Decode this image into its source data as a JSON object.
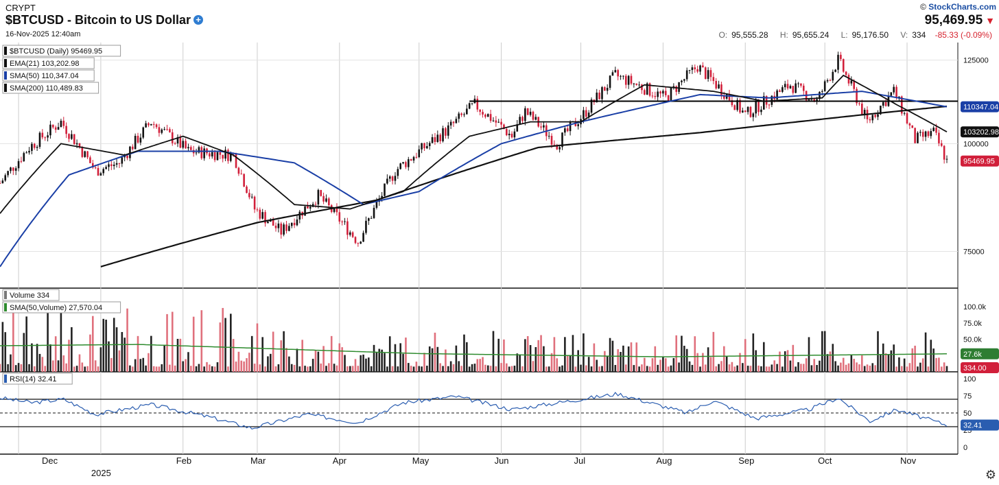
{
  "header": {
    "exchange": "CRYPT",
    "title": "$BTCUSD - Bitcoin to US Dollar",
    "datetime": "16-Nov-2025 12:40am",
    "brand_prefix": "©",
    "brand": "StockCharts.com",
    "last_price": "95,469.95",
    "open_label": "O:",
    "open": "95,555.28",
    "high_label": "H:",
    "high": "95,655.24",
    "low_label": "L:",
    "low": "95,176.50",
    "volume_label": "V:",
    "volume": "334",
    "change": "-85.33 (-0.09%)"
  },
  "colors": {
    "up": "#111111",
    "down": "#d11f3a",
    "sma50": "#1a3fa6",
    "volsma": "#2e8b2e",
    "rsi": "#2a5db0",
    "rsi_fill": "#2f8f5b"
  },
  "legend": {
    "price_label": "$BTCUSD (Daily) 95469.95",
    "ema21_label": "EMA(21) 103,202.98",
    "sma50_label": "SMA(50) 110,347.04",
    "sma200_label": "SMA(200) 110,489.83",
    "volume_label": "Volume 334",
    "volsma_label": "SMA(50,Volume) 27,570.04",
    "rsi_label": "RSI(14) 32.41"
  },
  "badges": {
    "sma50": "110347.04",
    "ema21": "103202.98",
    "price": "95469.95",
    "vol_sma": "27.6k",
    "volume": "334.00",
    "rsi": "32.41"
  },
  "gear_icon": "gear-icon",
  "chart_data": {
    "type": "candlestick",
    "date_range": [
      "2024-11-24",
      "2025-11-16"
    ],
    "x_tick_labels": [
      "Dec",
      "2025",
      "Feb",
      "Mar",
      "Apr",
      "May",
      "Jun",
      "Jul",
      "Aug",
      "Sep",
      "Oct",
      "Nov"
    ],
    "price_axis_ticks": [
      "125000",
      "100000",
      "75000"
    ],
    "volume_axis_ticks": [
      "100.0k",
      "75.0k",
      "50.0k",
      "25.0k"
    ],
    "rsi_axis_ticks": [
      "100",
      "75",
      "50",
      "25",
      "0"
    ],
    "price_key_points": [
      {
        "date": "2024-11-24",
        "close": 90000
      },
      {
        "date": "2024-12-05",
        "close": 99000
      },
      {
        "date": "2024-12-17",
        "close": 106000
      },
      {
        "date": "2024-12-30",
        "close": 93000
      },
      {
        "date": "2025-01-08",
        "close": 95000
      },
      {
        "date": "2025-01-20",
        "close": 106000
      },
      {
        "date": "2025-02-03",
        "close": 98000
      },
      {
        "date": "2025-02-20",
        "close": 97000
      },
      {
        "date": "2025-02-28",
        "close": 84000
      },
      {
        "date": "2025-03-10",
        "close": 79000
      },
      {
        "date": "2025-03-24",
        "close": 87000
      },
      {
        "date": "2025-04-08",
        "close": 77000
      },
      {
        "date": "2025-04-22",
        "close": 93000
      },
      {
        "date": "2025-05-12",
        "close": 104000
      },
      {
        "date": "2025-05-22",
        "close": 111000
      },
      {
        "date": "2025-06-05",
        "close": 102000
      },
      {
        "date": "2025-06-10",
        "close": 109000
      },
      {
        "date": "2025-06-22",
        "close": 100000
      },
      {
        "date": "2025-07-03",
        "close": 109000
      },
      {
        "date": "2025-07-14",
        "close": 120000
      },
      {
        "date": "2025-08-02",
        "close": 113000
      },
      {
        "date": "2025-08-14",
        "close": 123000
      },
      {
        "date": "2025-09-01",
        "close": 108000
      },
      {
        "date": "2025-09-18",
        "close": 117000
      },
      {
        "date": "2025-09-28",
        "close": 112000
      },
      {
        "date": "2025-10-06",
        "close": 125000
      },
      {
        "date": "2025-10-17",
        "close": 106000
      },
      {
        "date": "2025-10-27",
        "close": 115000
      },
      {
        "date": "2025-11-04",
        "close": 101000
      },
      {
        "date": "2025-11-11",
        "close": 103000
      },
      {
        "date": "2025-11-16",
        "close": 95470
      }
    ],
    "ema21_points": [
      {
        "date": "2024-11-24",
        "value": 83000
      },
      {
        "date": "2024-12-17",
        "value": 100000
      },
      {
        "date": "2025-01-10",
        "value": 97000
      },
      {
        "date": "2025-02-01",
        "value": 102000
      },
      {
        "date": "2025-02-20",
        "value": 97000
      },
      {
        "date": "2025-03-15",
        "value": 85000
      },
      {
        "date": "2025-04-05",
        "value": 84000
      },
      {
        "date": "2025-04-25",
        "value": 88000
      },
      {
        "date": "2025-05-20",
        "value": 102000
      },
      {
        "date": "2025-06-12",
        "value": 106000
      },
      {
        "date": "2025-07-01",
        "value": 106000
      },
      {
        "date": "2025-07-25",
        "value": 117000
      },
      {
        "date": "2025-08-20",
        "value": 115000
      },
      {
        "date": "2025-09-08",
        "value": 112000
      },
      {
        "date": "2025-09-30",
        "value": 113000
      },
      {
        "date": "2025-10-08",
        "value": 120000
      },
      {
        "date": "2025-10-28",
        "value": 111000
      },
      {
        "date": "2025-11-16",
        "value": 103202.98
      }
    ],
    "sma50_points": [
      {
        "date": "2024-11-24",
        "value": 72000
      },
      {
        "date": "2024-12-20",
        "value": 92000
      },
      {
        "date": "2025-01-15",
        "value": 98000
      },
      {
        "date": "2025-02-15",
        "value": 98000
      },
      {
        "date": "2025-03-15",
        "value": 95000
      },
      {
        "date": "2025-04-10",
        "value": 85000
      },
      {
        "date": "2025-05-01",
        "value": 88000
      },
      {
        "date": "2025-06-01",
        "value": 100000
      },
      {
        "date": "2025-07-01",
        "value": 106000
      },
      {
        "date": "2025-08-15",
        "value": 114000
      },
      {
        "date": "2025-09-10",
        "value": 113000
      },
      {
        "date": "2025-10-15",
        "value": 115000
      },
      {
        "date": "2025-11-16",
        "value": 110347.04
      }
    ],
    "sma200_points": [
      {
        "date": "2025-01-01",
        "value": 72000
      },
      {
        "date": "2025-03-01",
        "value": 81000
      },
      {
        "date": "2025-04-15",
        "value": 86000
      },
      {
        "date": "2025-06-15",
        "value": 99000
      },
      {
        "date": "2025-08-15",
        "value": 103000
      },
      {
        "date": "2025-10-15",
        "value": 108000
      },
      {
        "date": "2025-11-16",
        "value": 110489.83
      }
    ],
    "resistance_value": 112000,
    "volume_sma_points": [
      {
        "date": "2024-11-24",
        "value": 40000
      },
      {
        "date": "2025-01-15",
        "value": 42000
      },
      {
        "date": "2025-02-15",
        "value": 38000
      },
      {
        "date": "2025-05-01",
        "value": 28000
      },
      {
        "date": "2025-08-01",
        "value": 23000
      },
      {
        "date": "2025-11-16",
        "value": 27570.04
      }
    ],
    "rsi_points": [
      {
        "date": "2024-11-24",
        "value": 72
      },
      {
        "date": "2024-12-06",
        "value": 65
      },
      {
        "date": "2024-12-18",
        "value": 70
      },
      {
        "date": "2024-12-30",
        "value": 48
      },
      {
        "date": "2025-01-20",
        "value": 62
      },
      {
        "date": "2025-02-10",
        "value": 45
      },
      {
        "date": "2025-02-27",
        "value": 28
      },
      {
        "date": "2025-03-20",
        "value": 48
      },
      {
        "date": "2025-04-08",
        "value": 36
      },
      {
        "date": "2025-04-25",
        "value": 65
      },
      {
        "date": "2025-05-15",
        "value": 74
      },
      {
        "date": "2025-06-05",
        "value": 55
      },
      {
        "date": "2025-07-15",
        "value": 78
      },
      {
        "date": "2025-08-10",
        "value": 50
      },
      {
        "date": "2025-08-20",
        "value": 68
      },
      {
        "date": "2025-09-05",
        "value": 42
      },
      {
        "date": "2025-09-25",
        "value": 55
      },
      {
        "date": "2025-10-06",
        "value": 72
      },
      {
        "date": "2025-10-18",
        "value": 38
      },
      {
        "date": "2025-10-28",
        "value": 55
      },
      {
        "date": "2025-11-16",
        "value": 32.41
      }
    ],
    "rsi_levels": [
      70,
      50,
      30
    ]
  }
}
